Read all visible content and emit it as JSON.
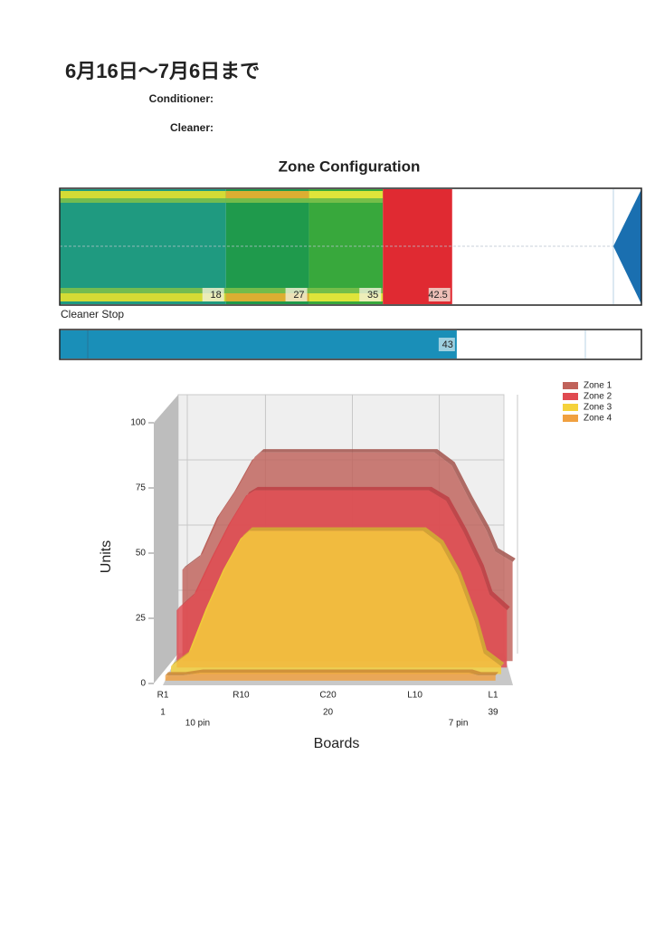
{
  "header": {
    "title": "6月16日～7月6日まで",
    "fields": [
      "Conditioner:",
      "Cleaner:"
    ]
  },
  "zone_configuration": {
    "title": "Zone Configuration",
    "xlim": [
      0,
      63
    ],
    "boundaries": [
      18,
      27,
      35,
      42.5
    ],
    "colors": [
      "#1f9a80",
      "#1f9a4c",
      "#38a83c",
      "#e02a32"
    ],
    "stripe_colors": [
      "#e8e22c",
      "#f0b030",
      "#f2ea3a",
      null
    ]
  },
  "cleaner_stop": {
    "label": "Cleaner Stop",
    "value": 43,
    "color": "#1a8fb8"
  },
  "chart_data": {
    "type": "area3d",
    "x_label": "Boards",
    "y_label": "Units",
    "x": [
      1,
      3,
      5,
      7,
      9,
      10,
      30,
      32,
      34,
      36,
      37,
      39
    ],
    "series": [
      {
        "name": "Zone 1",
        "color": "#c0625a",
        "values": [
          35,
          40,
          55,
          65,
          77,
          80,
          80,
          75,
          62,
          50,
          42,
          38
        ]
      },
      {
        "name": "Zone 2",
        "color": "#e04a50",
        "values": [
          22,
          28,
          42,
          55,
          66,
          68,
          68,
          64,
          52,
          38,
          28,
          22
        ]
      },
      {
        "name": "Zone 3",
        "color": "#f5d23a",
        "values": [
          3,
          8,
          25,
          40,
          52,
          55,
          55,
          50,
          38,
          20,
          8,
          3
        ]
      },
      {
        "name": "Zone 4",
        "color": "#f0a040",
        "values": [
          2,
          2,
          3,
          3,
          3,
          3,
          3,
          3,
          3,
          3,
          2,
          2
        ]
      }
    ],
    "xlim": [
      1,
      39
    ],
    "xticks": [
      {
        "value": 1,
        "label": "R1"
      },
      {
        "value": 10,
        "label": "R10"
      },
      {
        "value": 20,
        "label": "C20"
      },
      {
        "value": 30,
        "label": "L10"
      },
      {
        "value": 39,
        "label": "L1"
      }
    ],
    "board_numbers": [
      1,
      20,
      39
    ],
    "annotations": [
      {
        "text": "10 pin",
        "x": 5
      },
      {
        "text": "7 pin",
        "x": 35
      }
    ],
    "ylim": [
      0,
      100
    ],
    "yticks": [
      0,
      25,
      50,
      75,
      100
    ],
    "grid": true
  }
}
